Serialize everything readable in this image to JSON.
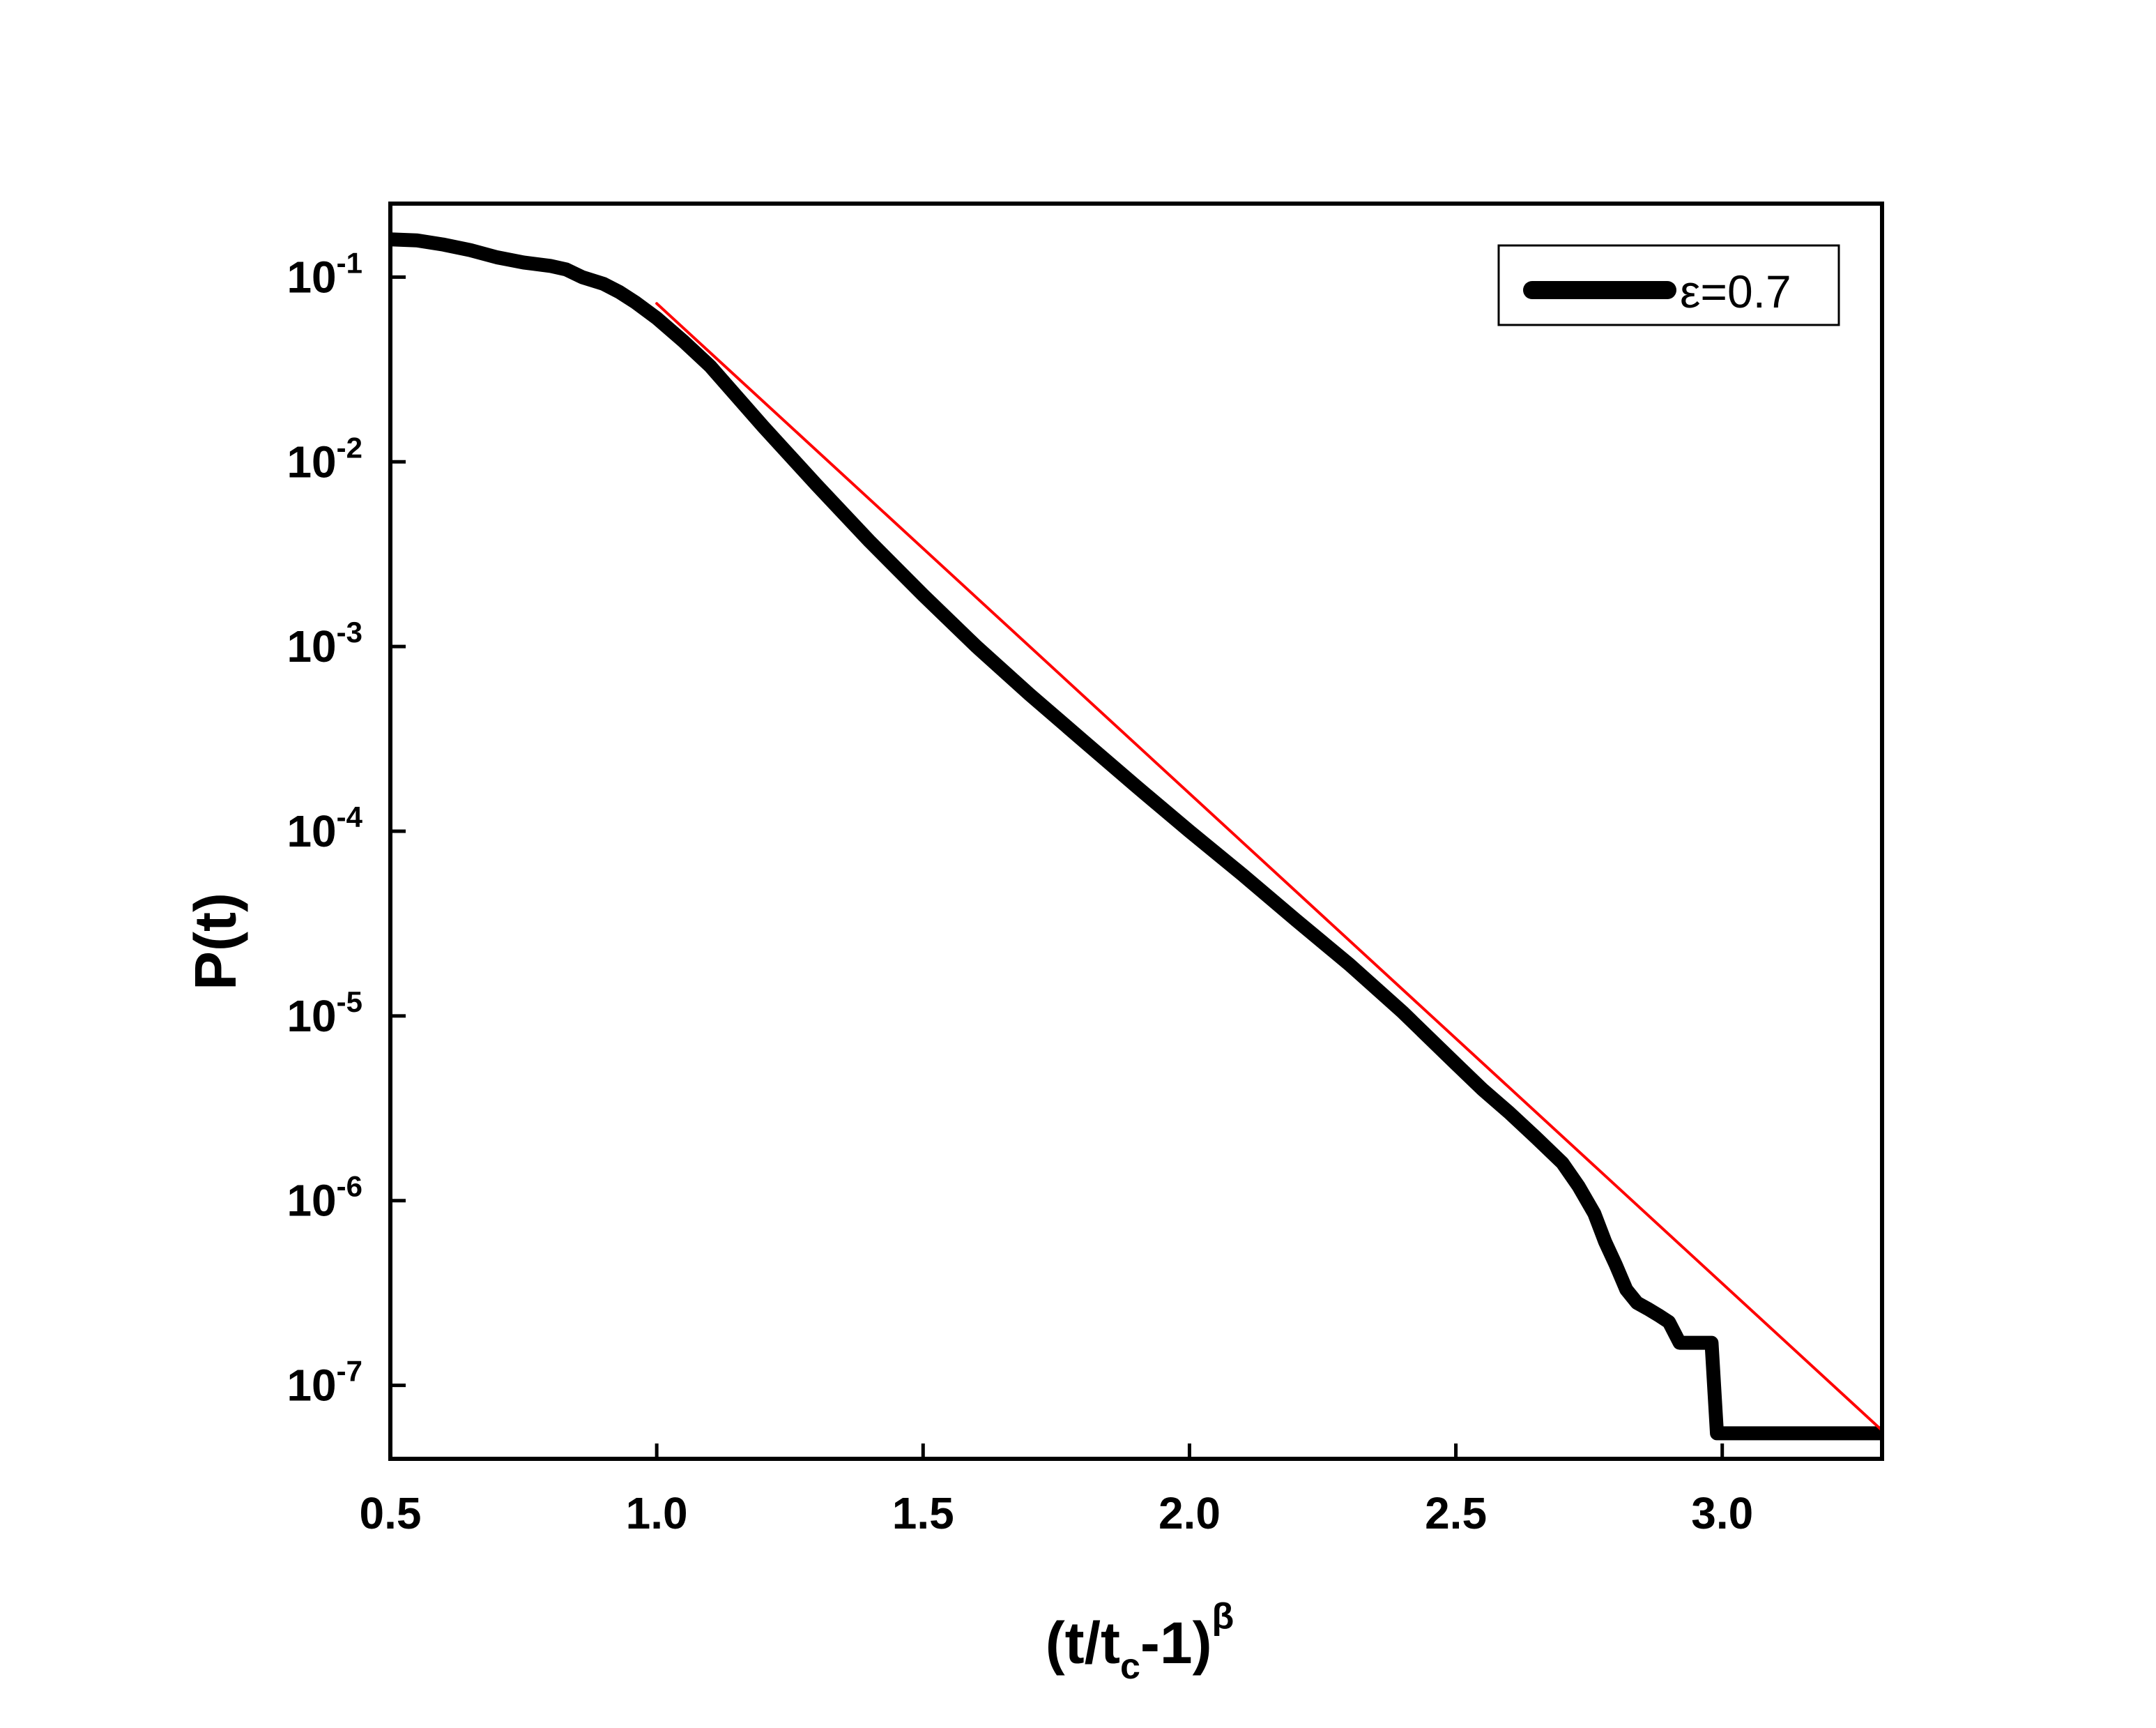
{
  "chart_data": {
    "type": "line",
    "title": "",
    "xlabel": {
      "main": "(t/t",
      "sub": "c",
      "mid": "-1)",
      "sup": "β"
    },
    "ylabel": "P(t)",
    "xlim": [
      0.5,
      3.3
    ],
    "ylim": [
      4e-08,
      0.25
    ],
    "yscale": "log",
    "grid": false,
    "legend_position": "top-right",
    "xticks": [
      "0.5",
      "1.0",
      "1.5",
      "2.0",
      "2.5",
      "3.0"
    ],
    "xtick_values": [
      0.5,
      1.0,
      1.5,
      2.0,
      2.5,
      3.0
    ],
    "yticks": [
      {
        "base": "10",
        "exp": "-1",
        "value": 0.1
      },
      {
        "base": "10",
        "exp": "-2",
        "value": 0.01
      },
      {
        "base": "10",
        "exp": "-3",
        "value": 0.001
      },
      {
        "base": "10",
        "exp": "-4",
        "value": 0.0001
      },
      {
        "base": "10",
        "exp": "-5",
        "value": 1e-05
      },
      {
        "base": "10",
        "exp": "-6",
        "value": 1e-06
      },
      {
        "base": "10",
        "exp": "-7",
        "value": 1e-07
      }
    ],
    "series": [
      {
        "name": "ε=0.7",
        "color": "#000000",
        "x": [
          0.5,
          0.55,
          0.6,
          0.65,
          0.7,
          0.75,
          0.8,
          0.83,
          0.86,
          0.9,
          0.93,
          0.96,
          1.0,
          1.05,
          1.1,
          1.2,
          1.3,
          1.4,
          1.5,
          1.6,
          1.7,
          1.8,
          1.9,
          2.0,
          2.1,
          2.2,
          2.3,
          2.4,
          2.5,
          2.55,
          2.6,
          2.65,
          2.7,
          2.73,
          2.76,
          2.78,
          2.8,
          2.82,
          2.84,
          2.86,
          2.88,
          2.9,
          2.92,
          2.96,
          2.98,
          2.99,
          3.0,
          3.3
        ],
        "y": [
          0.16,
          0.158,
          0.15,
          0.14,
          0.128,
          0.12,
          0.115,
          0.11,
          0.1,
          0.092,
          0.083,
          0.073,
          0.06,
          0.045,
          0.033,
          0.0155,
          0.0075,
          0.0037,
          0.0019,
          0.001,
          0.00055,
          0.00031,
          0.000175,
          0.0001,
          5.8e-05,
          3.3e-05,
          1.9e-05,
          1.05e-05,
          5.5e-06,
          4e-06,
          3e-06,
          2.2e-06,
          1.6e-06,
          1.2e-06,
          8.5e-07,
          6e-07,
          4.5e-07,
          3.3e-07,
          2.8e-07,
          2.6e-07,
          2.4e-07,
          2.2e-07,
          1.7e-07,
          1.7e-07,
          1.7e-07,
          5.5e-08,
          5.5e-08,
          5.5e-08
        ]
      },
      {
        "name": "",
        "color": "#ff0000",
        "x": [
          1.0,
          3.3
        ],
        "y": [
          0.072,
          5.7e-08
        ]
      }
    ]
  }
}
